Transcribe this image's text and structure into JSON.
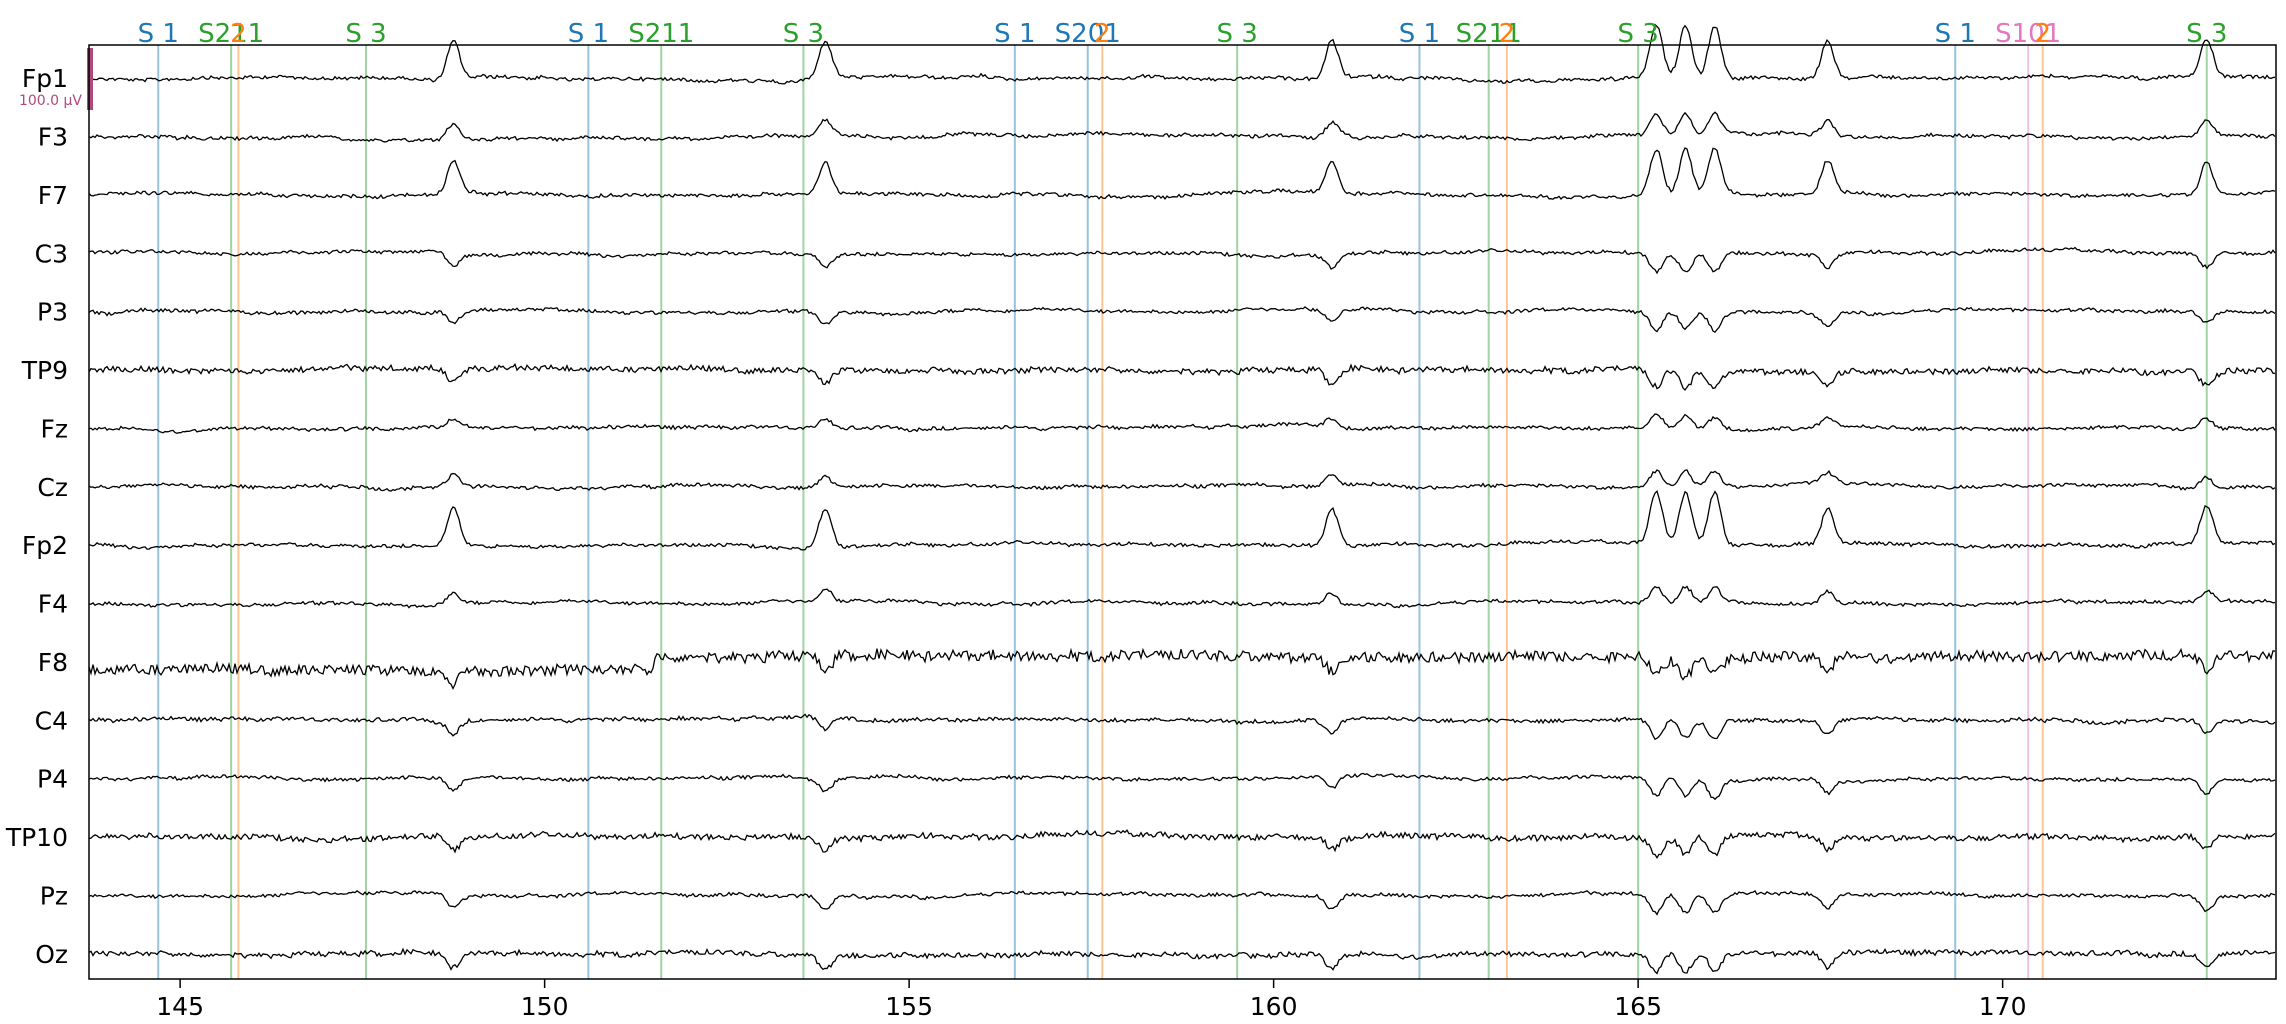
{
  "chart_data": {
    "type": "line",
    "title": "",
    "xlabel": "",
    "ylabel": "",
    "xlim": [
      143.75,
      173.75
    ],
    "x_ticks": [
      145,
      150,
      155,
      160,
      165,
      170
    ],
    "x_tick_labels": [
      "145",
      "150",
      "155",
      "160",
      "165",
      "170"
    ],
    "grid": false,
    "scale_bar": {
      "label": "100.0 µV",
      "value_uv": 100.0,
      "color": "#b04a7a"
    },
    "channels": [
      "Fp1",
      "F3",
      "F7",
      "C3",
      "P3",
      "TP9",
      "Fz",
      "Cz",
      "Fp2",
      "F4",
      "F8",
      "C4",
      "P4",
      "TP10",
      "Pz",
      "Oz"
    ],
    "event_colors": {
      "S  1": "#1f77b4",
      "S 11": "#ff7f0e",
      "S  3": "#2ca02c",
      "S 21": "#2ca02c",
      "S 2": "#ff7f0e",
      "S 20": "#1f77b4",
      "S 5": "#e377c2",
      "S 10": "#ff7f0e"
    },
    "events": [
      {
        "time": 144.7,
        "label": "S  1",
        "color": "#1f77b4"
      },
      {
        "time": 145.7,
        "label": "S211",
        "color": "#2ca02c"
      },
      {
        "time": 145.8,
        "label": "2",
        "color": "#ff7f0e"
      },
      {
        "time": 147.55,
        "label": "S  3",
        "color": "#2ca02c"
      },
      {
        "time": 150.6,
        "label": "S  1",
        "color": "#1f77b4"
      },
      {
        "time": 151.6,
        "label": "S211",
        "color": "#2ca02c"
      },
      {
        "time": 153.55,
        "label": "S  3",
        "color": "#2ca02c"
      },
      {
        "time": 156.45,
        "label": "S  1",
        "color": "#1f77b4"
      },
      {
        "time": 157.45,
        "label": "S201",
        "color": "#1f77b4"
      },
      {
        "time": 157.65,
        "label": "2",
        "color": "#ff7f0e"
      },
      {
        "time": 159.5,
        "label": "S  3",
        "color": "#2ca02c"
      },
      {
        "time": 162.0,
        "label": "S  1",
        "color": "#1f77b4"
      },
      {
        "time": 162.95,
        "label": "S211",
        "color": "#2ca02c"
      },
      {
        "time": 163.2,
        "label": "2",
        "color": "#ff7f0e"
      },
      {
        "time": 165.0,
        "label": "S  3",
        "color": "#2ca02c"
      },
      {
        "time": 169.35,
        "label": "S  1",
        "color": "#1f77b4"
      },
      {
        "time": 170.35,
        "label": "S101",
        "color": "#e377c2"
      },
      {
        "time": 170.55,
        "label": "2",
        "color": "#ff7f0e"
      },
      {
        "time": 172.8,
        "label": "S  3",
        "color": "#2ca02c"
      }
    ],
    "blinks": [
      148.75,
      153.85,
      160.8,
      165.25,
      165.65,
      166.05,
      167.6,
      172.8
    ],
    "series_color": "#000000"
  }
}
